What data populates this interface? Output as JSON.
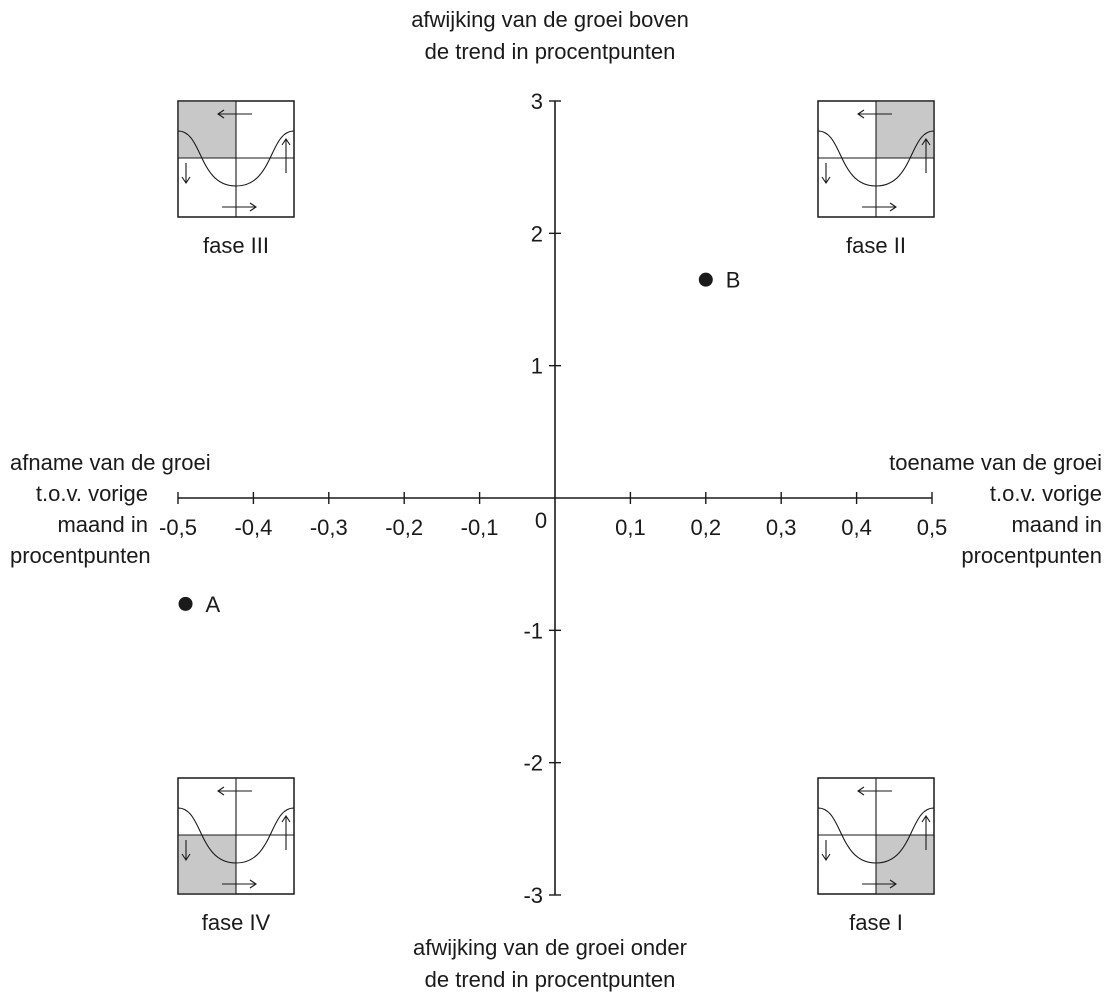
{
  "chart_data": {
    "type": "scatter",
    "xlabel_left": [
      "afname van de groei",
      "t.o.v. vorige",
      "maand in",
      "procentpunten"
    ],
    "xlabel_right": [
      "toename van de groei",
      "t.o.v. vorige",
      "maand in",
      "procentpunten"
    ],
    "ylabel_top": [
      "afwijking van de groei boven",
      "de trend in procentpunten"
    ],
    "ylabel_bottom": [
      "afwijking van de groei onder",
      "de trend in procentpunten"
    ],
    "xlim": [
      -0.5,
      0.5
    ],
    "ylim": [
      -3,
      3
    ],
    "x_ticks": [
      -0.5,
      -0.4,
      -0.3,
      -0.2,
      -0.1,
      0.1,
      0.2,
      0.3,
      0.4,
      0.5
    ],
    "x_tick_labels": [
      "-0,5",
      "-0,4",
      "-0,3",
      "-0,2",
      "-0,1",
      "0,1",
      "0,2",
      "0,3",
      "0,4",
      "0,5"
    ],
    "y_ticks": [
      3,
      2,
      1,
      -1,
      -2,
      -3
    ],
    "y_tick_labels": [
      "3",
      "2",
      "1",
      "-1",
      "-2",
      "-3"
    ],
    "origin_label": "0",
    "grid": false,
    "points": [
      {
        "label": "A",
        "x": -0.49,
        "y": -0.8
      },
      {
        "label": "B",
        "x": 0.2,
        "y": 1.65
      }
    ],
    "phases": [
      {
        "label": "fase III",
        "quadrant": "top-left",
        "shaded": "top-left"
      },
      {
        "label": "fase II",
        "quadrant": "top-right",
        "shaded": "top-right"
      },
      {
        "label": "fase IV",
        "quadrant": "bottom-left",
        "shaded": "bottom-left"
      },
      {
        "label": "fase I",
        "quadrant": "bottom-right",
        "shaded": "bottom-right"
      }
    ],
    "colors": {
      "ink": "#1a1a1a",
      "shade": "#c8c8c8"
    }
  }
}
